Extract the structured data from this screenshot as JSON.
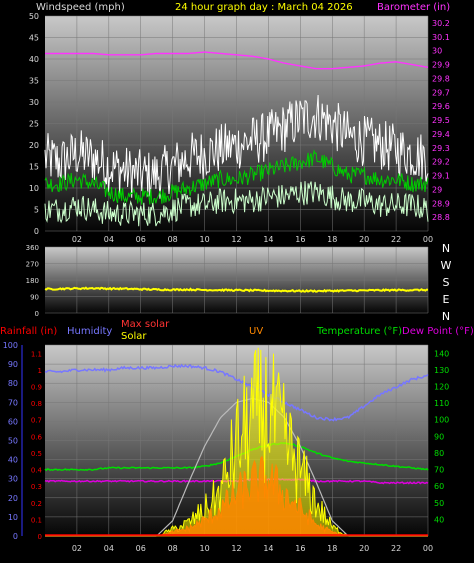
{
  "header": {
    "left_label": "Windspeed (mph)",
    "center_label": "24 hour graph day : March 04 2026",
    "right_label": "Barometer (in)"
  },
  "colors": {
    "wind_axis": "#d9d9d9",
    "baro_axis": "#ff33ff",
    "title": "#ffff00",
    "gust": "#ffffff",
    "avg": "#00cc00",
    "min": "#ccffcc",
    "baro": "#ff33ff",
    "direction": "#ffff00",
    "rain": "#ff0000",
    "humidity": "#7777ff",
    "maxsolar": "#bbbbbb",
    "solar": "#ffff00",
    "uv": "#ff8800",
    "temp": "#00dd00",
    "dew": "#dd00dd",
    "grid": "#777777"
  },
  "chart_data": [
    {
      "type": "line",
      "title": "24 hour graph day : March 04 2026",
      "x_ticks": [
        "02",
        "04",
        "06",
        "08",
        "10",
        "12",
        "14",
        "16",
        "18",
        "20",
        "22",
        "00"
      ],
      "ylabel": "Windspeed (mph)",
      "ylim": [
        0,
        50
      ],
      "y_ticks": [
        "0",
        "5",
        "10",
        "15",
        "20",
        "25",
        "30",
        "35",
        "40",
        "45",
        "50"
      ],
      "y2label": "Barometer (in)",
      "y2lim": [
        28.7,
        30.25
      ],
      "y2_ticks": [
        "28.8",
        "28.9",
        "29",
        "29.1",
        "29.2",
        "29.3",
        "29.4",
        "29.5",
        "29.6",
        "29.7",
        "29.8",
        "29.9",
        "30",
        "30.1",
        "30.2"
      ],
      "hours": [
        0,
        1,
        2,
        3,
        4,
        5,
        6,
        7,
        8,
        9,
        10,
        11,
        12,
        13,
        14,
        15,
        16,
        17,
        18,
        19,
        20,
        21,
        22,
        23,
        24
      ],
      "series": [
        {
          "key": "gust",
          "values": [
            17,
            16,
            18,
            17,
            15,
            14,
            13,
            13,
            15,
            17,
            18,
            19,
            20,
            21,
            22,
            24,
            26,
            27,
            25,
            22,
            21,
            20,
            19,
            18,
            17
          ]
        },
        {
          "key": "avg",
          "values": [
            11,
            11,
            12,
            11,
            9,
            8,
            8,
            8,
            9,
            10,
            11,
            12,
            12,
            13,
            14,
            15,
            16,
            17,
            15,
            13,
            13,
            12,
            12,
            11,
            11
          ]
        },
        {
          "key": "min",
          "values": [
            5,
            5,
            6,
            5,
            4,
            4,
            4,
            4,
            5,
            6,
            6,
            7,
            7,
            7,
            8,
            8,
            9,
            9,
            8,
            7,
            7,
            6,
            6,
            6,
            5
          ]
        },
        {
          "key": "baro",
          "axis": "right",
          "values": [
            29.98,
            29.98,
            29.98,
            29.98,
            29.97,
            29.97,
            29.97,
            29.98,
            29.98,
            29.98,
            29.99,
            29.98,
            29.97,
            29.96,
            29.94,
            29.91,
            29.89,
            29.87,
            29.87,
            29.88,
            29.89,
            29.91,
            29.92,
            29.9,
            29.88
          ]
        }
      ]
    },
    {
      "type": "line",
      "x_ticks": [
        "02",
        "04",
        "06",
        "08",
        "10",
        "12",
        "14",
        "16",
        "18",
        "20",
        "22",
        "00"
      ],
      "ylim": [
        0,
        360
      ],
      "y_ticks": [
        "0",
        "90",
        "180",
        "270",
        "360"
      ],
      "compass": [
        "N",
        "W",
        "S",
        "E",
        "N"
      ],
      "series": [
        {
          "key": "direction",
          "values": [
            130,
            132,
            134,
            135,
            133,
            132,
            130,
            128,
            127,
            128,
            126,
            125,
            124,
            123,
            122,
            121,
            120,
            120,
            121,
            122,
            123,
            124,
            125,
            125,
            126
          ]
        }
      ]
    },
    {
      "type": "line",
      "x_ticks": [
        "02",
        "04",
        "06",
        "08",
        "10",
        "12",
        "14",
        "16",
        "18",
        "20",
        "22",
        "00"
      ],
      "legend": {
        "rain": "Rainfall (in)",
        "humidity": "Humidity",
        "maxsolar": "Max solar",
        "solar": "Solar",
        "uv": "UV",
        "temp": "Temperature (°F)",
        "dew": "Dew Point (°F)"
      },
      "y_left_ticks": [
        "0",
        "10",
        "20",
        "30",
        "40",
        "50",
        "60",
        "70",
        "80",
        "90",
        "100"
      ],
      "y_rain_ticks": [
        "0",
        "0.1",
        "0.2",
        "0.3",
        "0.4",
        "0.5",
        "0.6",
        "0.7",
        "0.8",
        "0.9",
        "1",
        "1.1"
      ],
      "y_right_ticks": [
        "40",
        "50",
        "60",
        "70",
        "80",
        "90",
        "100",
        "110",
        "120",
        "130",
        "140"
      ],
      "humidity_lim": [
        0,
        100
      ],
      "temp_lim": [
        30,
        145
      ],
      "hours": [
        0,
        1,
        2,
        3,
        4,
        5,
        6,
        7,
        8,
        9,
        10,
        11,
        12,
        13,
        14,
        15,
        16,
        17,
        18,
        19,
        20,
        21,
        22,
        23,
        24
      ],
      "series": [
        {
          "key": "humidity",
          "axis": "left",
          "values": [
            86,
            86,
            87,
            87,
            87,
            88,
            88,
            88,
            89,
            89,
            88,
            86,
            82,
            78,
            74,
            70,
            66,
            62,
            61,
            62,
            68,
            74,
            78,
            82,
            84
          ]
        },
        {
          "key": "temp",
          "axis": "right",
          "values": [
            70,
            70,
            70,
            70,
            71,
            71,
            71,
            71,
            71,
            71,
            72,
            74,
            78,
            82,
            85,
            86,
            84,
            80,
            77,
            75,
            74,
            73,
            72,
            71,
            70
          ]
        },
        {
          "key": "dew",
          "axis": "right",
          "values": [
            63,
            63,
            63,
            63,
            63,
            63,
            63,
            63,
            63,
            63,
            63,
            63,
            63,
            64,
            64,
            64,
            64,
            63,
            63,
            63,
            63,
            62,
            62,
            62,
            62
          ]
        },
        {
          "key": "maxsolar",
          "axis": "left",
          "values": [
            0,
            0,
            0,
            0,
            0,
            0,
            0,
            0,
            8,
            28,
            47,
            62,
            70,
            72,
            70,
            62,
            47,
            28,
            8,
            0,
            0,
            0,
            0,
            0,
            0
          ]
        },
        {
          "key": "solar",
          "axis": "left",
          "values": [
            0,
            0,
            0,
            0,
            0,
            0,
            0,
            0,
            3,
            6,
            12,
            20,
            42,
            55,
            58,
            45,
            30,
            15,
            4,
            0,
            0,
            0,
            0,
            0,
            0
          ]
        },
        {
          "key": "uv",
          "axis": "left",
          "values": [
            0,
            0,
            0,
            0,
            0,
            0,
            0,
            0,
            2,
            4,
            8,
            14,
            22,
            28,
            30,
            22,
            14,
            6,
            2,
            0,
            0,
            0,
            0,
            0,
            0
          ]
        },
        {
          "key": "rain",
          "axis": "rain",
          "values": [
            0,
            0,
            0,
            0,
            0,
            0,
            0,
            0,
            0,
            0,
            0,
            0,
            0,
            0,
            0,
            0,
            0,
            0,
            0,
            0,
            0,
            0,
            0,
            0,
            0
          ]
        }
      ]
    }
  ]
}
